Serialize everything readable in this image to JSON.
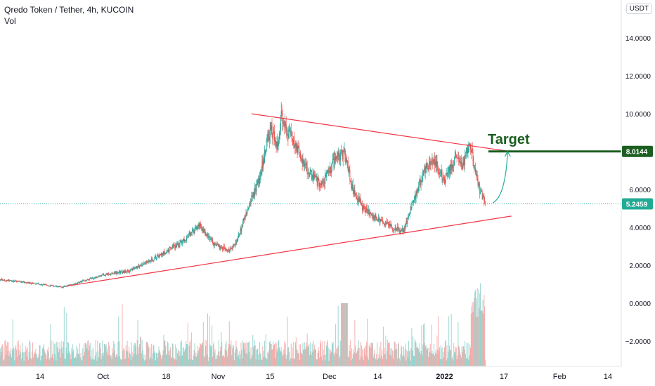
{
  "header": {
    "title": "Qredo Token / Tether, 4h, KUCOIN",
    "volume_label": "Vol",
    "currency": "USDT"
  },
  "chart_data": {
    "type": "candlestick",
    "symbol": "Qredo Token / Tether",
    "interval": "4h",
    "exchange": "KUCOIN",
    "y_ticks": [
      "14.0000",
      "12.0000",
      "10.0000",
      "8.0000",
      "6.0000",
      "4.0000",
      "2.0000",
      "0.0000",
      "−2.0000"
    ],
    "y_tick_values": [
      14,
      12,
      10,
      8,
      6,
      4,
      2,
      0,
      -2
    ],
    "x_ticks": [
      "14",
      "Oct",
      "18",
      "Nov",
      "15",
      "Dec",
      "14",
      "2022",
      "17",
      "Feb",
      "14"
    ],
    "x_tick_dates": [
      "2021-09-14",
      "2021-10-01",
      "2021-10-18",
      "2021-11-01",
      "2021-11-15",
      "2021-12-01",
      "2021-12-14",
      "2022-01-01",
      "2022-01-17",
      "2022-02-01",
      "2022-02-14"
    ],
    "price_path": [
      {
        "date": "2021-09-01",
        "price": 1.3
      },
      {
        "date": "2021-09-10",
        "price": 1.1
      },
      {
        "date": "2021-09-20",
        "price": 0.85
      },
      {
        "date": "2021-09-26",
        "price": 1.2
      },
      {
        "date": "2021-10-01",
        "price": 1.5
      },
      {
        "date": "2021-10-08",
        "price": 1.7
      },
      {
        "date": "2021-10-15",
        "price": 2.4
      },
      {
        "date": "2021-10-22",
        "price": 3.2
      },
      {
        "date": "2021-10-27",
        "price": 4.1
      },
      {
        "date": "2021-10-31",
        "price": 3.1
      },
      {
        "date": "2021-11-04",
        "price": 2.8
      },
      {
        "date": "2021-11-06",
        "price": 3.3
      },
      {
        "date": "2021-11-09",
        "price": 5.0
      },
      {
        "date": "2021-11-12",
        "price": 6.5
      },
      {
        "date": "2021-11-15",
        "price": 9.2
      },
      {
        "date": "2021-11-17",
        "price": 8.4
      },
      {
        "date": "2021-11-18",
        "price": 9.8
      },
      {
        "date": "2021-11-21",
        "price": 8.6
      },
      {
        "date": "2021-11-25",
        "price": 7.0
      },
      {
        "date": "2021-11-29",
        "price": 6.2
      },
      {
        "date": "2021-12-02",
        "price": 7.4
      },
      {
        "date": "2021-12-05",
        "price": 8.0
      },
      {
        "date": "2021-12-07",
        "price": 6.2
      },
      {
        "date": "2021-12-10",
        "price": 5.0
      },
      {
        "date": "2021-12-14",
        "price": 4.4
      },
      {
        "date": "2021-12-18",
        "price": 4.0
      },
      {
        "date": "2021-12-21",
        "price": 3.8
      },
      {
        "date": "2021-12-24",
        "price": 5.6
      },
      {
        "date": "2021-12-27",
        "price": 7.2
      },
      {
        "date": "2021-12-29",
        "price": 7.6
      },
      {
        "date": "2022-01-01",
        "price": 6.4
      },
      {
        "date": "2022-01-04",
        "price": 7.8
      },
      {
        "date": "2022-01-06",
        "price": 7.4
      },
      {
        "date": "2022-01-08",
        "price": 8.4
      },
      {
        "date": "2022-01-10",
        "price": 6.2
      },
      {
        "date": "2022-01-12",
        "price": 5.2
      }
    ],
    "last_price": 5.2459,
    "last_price_label": "5.2459",
    "target_price": 8.0144,
    "target_price_label": "8.0144",
    "annotations": {
      "target_label": "Target",
      "upper_trendline": [
        {
          "date": "2021-11-10",
          "price": 10.0
        },
        {
          "date": "2022-01-19",
          "price": 8.0
        }
      ],
      "lower_trendline": [
        {
          "date": "2021-09-21",
          "price": 0.9
        },
        {
          "date": "2022-01-19",
          "price": 4.6
        }
      ],
      "projection_arrow": [
        {
          "date": "2022-01-14",
          "price": 5.3
        },
        {
          "date": "2022-01-18",
          "price": 8.0
        }
      ]
    },
    "colors": {
      "up": "#26a69a",
      "down": "#ef5350",
      "trendline": "#f23645",
      "target": "#1b5e20",
      "last_price": "#22ab94",
      "arrow": "#22ab94"
    },
    "grid": false,
    "log_scale": false
  }
}
